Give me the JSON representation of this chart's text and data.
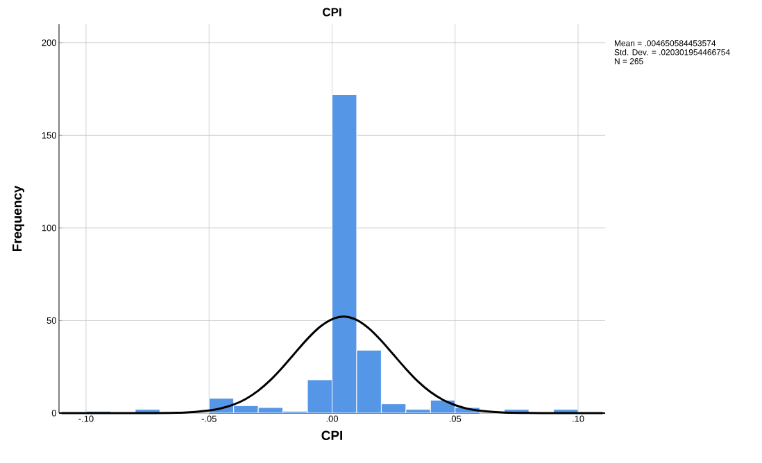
{
  "chart_data": {
    "type": "histogram",
    "title": "CPI",
    "xlabel": "CPI",
    "ylabel": "Frequency",
    "bins": [
      -0.1,
      -0.09,
      -0.08,
      -0.07,
      -0.06,
      -0.05,
      -0.04,
      -0.03,
      -0.02,
      -0.01,
      0.0,
      0.01,
      0.02,
      0.03,
      0.04,
      0.05,
      0.06,
      0.07,
      0.08,
      0.09,
      0.1
    ],
    "values": [
      1,
      0,
      2,
      0,
      0,
      8,
      4,
      3,
      1,
      18,
      172,
      34,
      5,
      2,
      7,
      3,
      0,
      2,
      0,
      2
    ],
    "color": "#5596e6",
    "series": [
      {
        "type": "line",
        "color": "#000000",
        "x": [
          -0.11,
          -0.08,
          -0.06,
          -0.05,
          -0.045,
          -0.04,
          -0.035,
          -0.03,
          -0.025,
          -0.02,
          -0.015,
          -0.01,
          -0.005,
          0.0,
          0.005,
          0.01,
          0.015,
          0.02,
          0.025,
          0.03,
          0.035,
          0.04,
          0.045,
          0.05,
          0.055,
          0.06,
          0.07,
          0.09,
          0.11
        ],
        "values": [
          0,
          0,
          0.3,
          1.4,
          2.6,
          4.6,
          7.7,
          12.1,
          17.9,
          24.9,
          32.6,
          40.1,
          46.5,
          50.7,
          52.1,
          50.3,
          45.7,
          39.1,
          31.5,
          23.9,
          17.0,
          11.4,
          7.2,
          4.3,
          2.4,
          1.3,
          0.3,
          0,
          0
        ]
      }
    ],
    "xlim": [
      -0.111,
      0.111
    ],
    "ylim": [
      0,
      210
    ],
    "xticks": [
      {
        "value": -0.1,
        "label": "-.10"
      },
      {
        "value": -0.05,
        "label": "-.05"
      },
      {
        "value": 0,
        "label": ".00"
      },
      {
        "value": 0.05,
        "label": ".05"
      },
      {
        "value": 0.1,
        "label": ".10"
      }
    ],
    "yticks": [
      0,
      50,
      100,
      150,
      200
    ],
    "grid": true,
    "annotations": [
      "Mean = .004650584453574",
      "Std. Dev. = .020301954466754",
      "N = 265"
    ]
  }
}
